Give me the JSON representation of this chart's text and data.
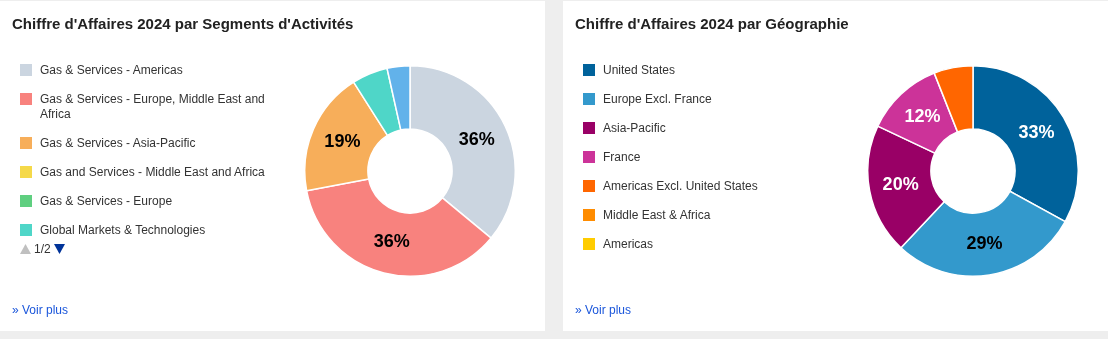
{
  "chart_data": [
    {
      "type": "donut",
      "title": "Chiffre d'Affaires 2024 par Segments d'Activités",
      "categories": [
        "Gas & Services - Americas",
        "Gas & Services - Europe, Middle East and Africa",
        "Gas & Services - Asia-Pacific",
        "Gas and Services - Middle East and Africa",
        "Gas & Services - Europe",
        "Global Markets & Technologies",
        null
      ],
      "values": [
        36,
        36,
        19,
        0,
        0,
        5.5,
        3.5
      ],
      "colors": [
        "#cbd5e0",
        "#f8827e",
        "#f7ae5a",
        "#f5d949",
        "#5fcf80",
        "#4fd6c8",
        "#62b2ea"
      ],
      "value_labels": [
        "36%",
        "36%",
        "19%",
        null,
        null,
        null,
        null
      ],
      "legend": "left",
      "annotations": [
        "» Voir plus",
        "1/2"
      ]
    },
    {
      "type": "donut",
      "title": "Chiffre d'Affaires 2024 par Géographie",
      "categories": [
        "United States",
        "Europe Excl. France",
        "Asia-Pacific",
        "France",
        "Americas Excl. United States",
        "Middle East & Africa",
        "Americas"
      ],
      "values": [
        33,
        29,
        20,
        12,
        6,
        0,
        0
      ],
      "colors": [
        "#00629b",
        "#3399cc",
        "#990066",
        "#cc3399",
        "#ff6600",
        "#ff8c00",
        "#ffcc00"
      ],
      "value_labels": [
        "33%",
        "29%",
        "20%",
        "12%",
        null,
        null,
        null
      ],
      "legend": "left",
      "annotations": [
        "» Voir plus"
      ]
    }
  ]
}
